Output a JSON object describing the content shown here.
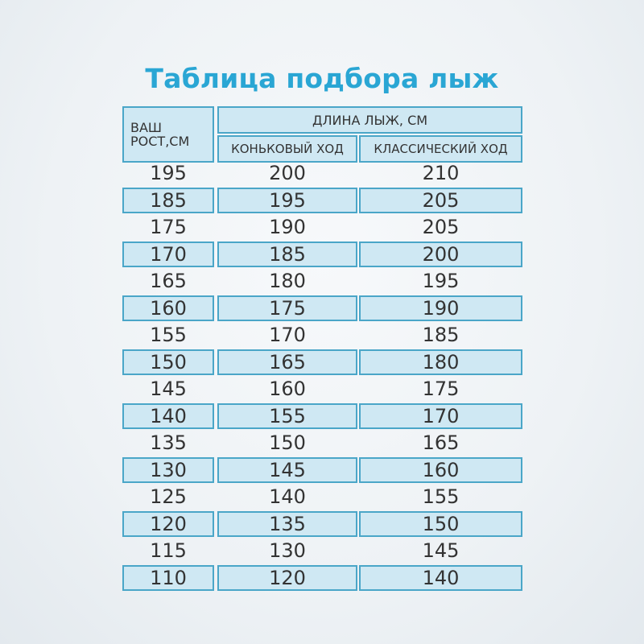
{
  "title": "Таблица подбора лыж",
  "header": {
    "height_col": "ВАШ РОСТ,СМ",
    "height_col_line1": "ВАШ",
    "height_col_line2": "РОСТ,СМ",
    "ski_length": "ДЛИНА ЛЫЖ, СМ",
    "skate": "КОНЬКОВЫЙ ХОД",
    "classic": "КЛАССИЧЕСКИЙ ХОД"
  },
  "colors": {
    "title": "#2aa6d4",
    "cell_fill": "#cfe8f3",
    "cell_border": "#4aa6c8"
  },
  "rows": [
    {
      "height": "195",
      "skate": "200",
      "classic": "210"
    },
    {
      "height": "185",
      "skate": "195",
      "classic": "205"
    },
    {
      "height": "175",
      "skate": "190",
      "classic": "205"
    },
    {
      "height": "170",
      "skate": "185",
      "classic": "200"
    },
    {
      "height": "165",
      "skate": "180",
      "classic": "195"
    },
    {
      "height": "160",
      "skate": "175",
      "classic": "190"
    },
    {
      "height": "155",
      "skate": "170",
      "classic": "185"
    },
    {
      "height": "150",
      "skate": "165",
      "classic": "180"
    },
    {
      "height": "145",
      "skate": "160",
      "classic": "175"
    },
    {
      "height": "140",
      "skate": "155",
      "classic": "170"
    },
    {
      "height": "135",
      "skate": "150",
      "classic": "165"
    },
    {
      "height": "130",
      "skate": "145",
      "classic": "160"
    },
    {
      "height": "125",
      "skate": "140",
      "classic": "155"
    },
    {
      "height": "120",
      "skate": "135",
      "classic": "150"
    },
    {
      "height": "115",
      "skate": "130",
      "classic": "145"
    },
    {
      "height": "110",
      "skate": "120",
      "classic": "140"
    }
  ]
}
